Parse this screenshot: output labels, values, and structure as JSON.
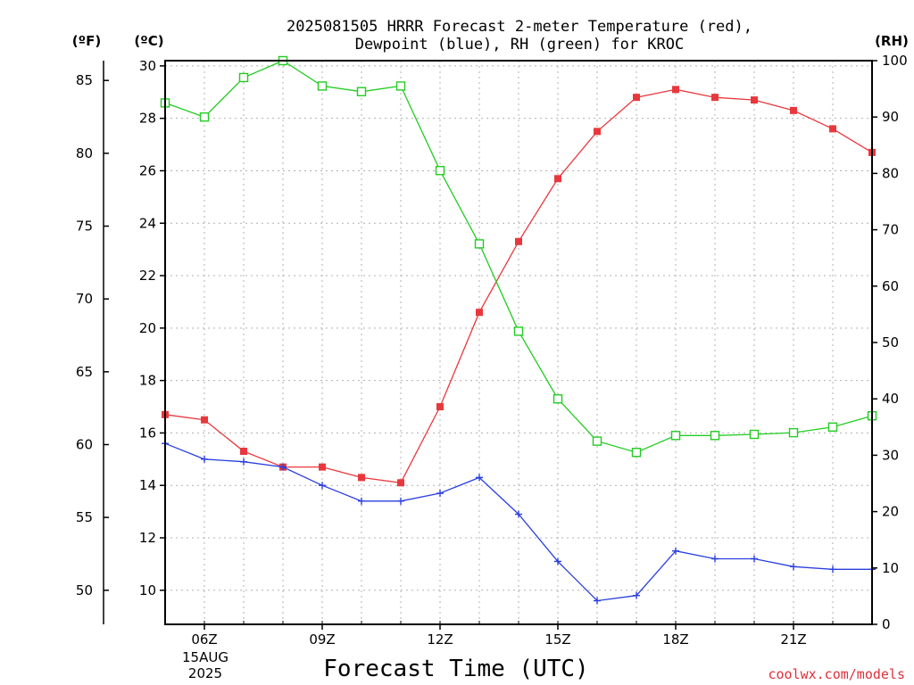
{
  "chart_data": {
    "type": "line",
    "title_line1": "2025081505 HRRR Forecast 2-meter Temperature (red),",
    "title_line2": "Dewpoint (blue), RH (green) for KROC",
    "xlabel": "Forecast Time (UTC)",
    "left_outer_unit": "(ºF)",
    "left_inner_unit": "(ºC)",
    "right_unit": "(RH)",
    "date_label_1": "15AUG",
    "date_label_2": "2025",
    "credit": "coolwx.com/models",
    "x": [
      5,
      6,
      7,
      8,
      9,
      10,
      11,
      12,
      13,
      14,
      15,
      16,
      17,
      18,
      19,
      20,
      21,
      22,
      23
    ],
    "x_ticks": [
      6,
      9,
      12,
      15,
      18,
      21
    ],
    "x_tick_labels": [
      "06Z",
      "09Z",
      "12Z",
      "15Z",
      "18Z",
      "21Z"
    ],
    "xlim": [
      5,
      23
    ],
    "celsius_ticks": [
      10,
      12,
      14,
      16,
      18,
      20,
      22,
      24,
      26,
      28,
      30
    ],
    "fahrenheit_ticks": [
      50,
      55,
      60,
      65,
      70,
      75,
      80,
      85
    ],
    "rh_ticks": [
      0,
      10,
      20,
      30,
      40,
      50,
      60,
      70,
      80,
      90,
      100
    ],
    "ylim_celsius": [
      8.7,
      30.2
    ],
    "ylim_rh": [
      0,
      100
    ],
    "grid": true,
    "series": [
      {
        "name": "Temperature",
        "axis": "celsius",
        "color": "#e8383d",
        "marker": "filled-square",
        "values": [
          16.7,
          16.5,
          15.3,
          14.7,
          14.7,
          14.3,
          14.1,
          17.0,
          20.6,
          23.3,
          25.7,
          27.5,
          28.8,
          29.1,
          28.8,
          28.7,
          28.3,
          27.6,
          26.7
        ]
      },
      {
        "name": "Dewpoint",
        "axis": "celsius",
        "color": "#2a3fe0",
        "marker": "plus",
        "values": [
          15.6,
          15.0,
          14.9,
          14.7,
          14.0,
          13.4,
          13.4,
          13.7,
          14.3,
          12.9,
          11.1,
          9.6,
          9.8,
          11.5,
          11.2,
          11.2,
          10.9,
          10.8,
          10.8
        ]
      },
      {
        "name": "RH",
        "axis": "rh",
        "color": "#22cc22",
        "marker": "open-square",
        "values": [
          92.5,
          90,
          97,
          100,
          95.5,
          94.5,
          95.5,
          80.5,
          67.5,
          52,
          40,
          32.5,
          30.5,
          33.5,
          33.5,
          33.7,
          34,
          35,
          37
        ]
      }
    ]
  }
}
